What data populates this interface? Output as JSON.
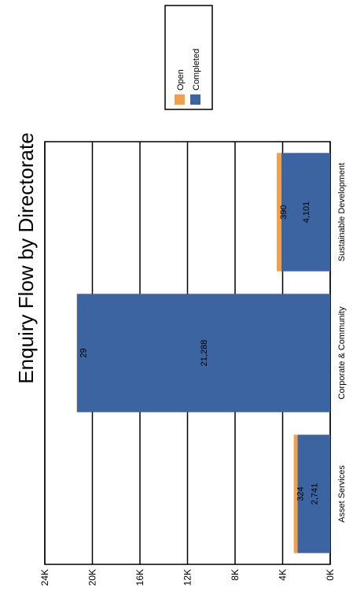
{
  "chart_data": {
    "type": "bar",
    "stacked": true,
    "orientation": "vertical (rendered rotated 90 degrees)",
    "title": "Enquiry Flow by Directorate",
    "categories": [
      "Asset Services",
      "Corporate & Community",
      "Sustainable Development"
    ],
    "series": [
      {
        "name": "Completed",
        "color": "#3b64a0",
        "values": [
          2741,
          21288,
          4101
        ],
        "labels": [
          "2,741",
          "21,288",
          "4,101"
        ]
      },
      {
        "name": "Open",
        "color": "#f0a04a",
        "values": [
          324,
          29,
          390
        ],
        "labels": [
          "324",
          "29",
          "390"
        ]
      }
    ],
    "ylim": [
      0,
      24000
    ],
    "yticks": [
      0,
      4000,
      8000,
      12000,
      16000,
      20000,
      24000
    ],
    "ytick_labels": [
      "0K",
      "4K",
      "8K",
      "12K",
      "16K",
      "20K",
      "24K"
    ],
    "grid": true,
    "legend": {
      "position": "top-right",
      "entries": [
        "Open",
        "Completed"
      ]
    }
  }
}
